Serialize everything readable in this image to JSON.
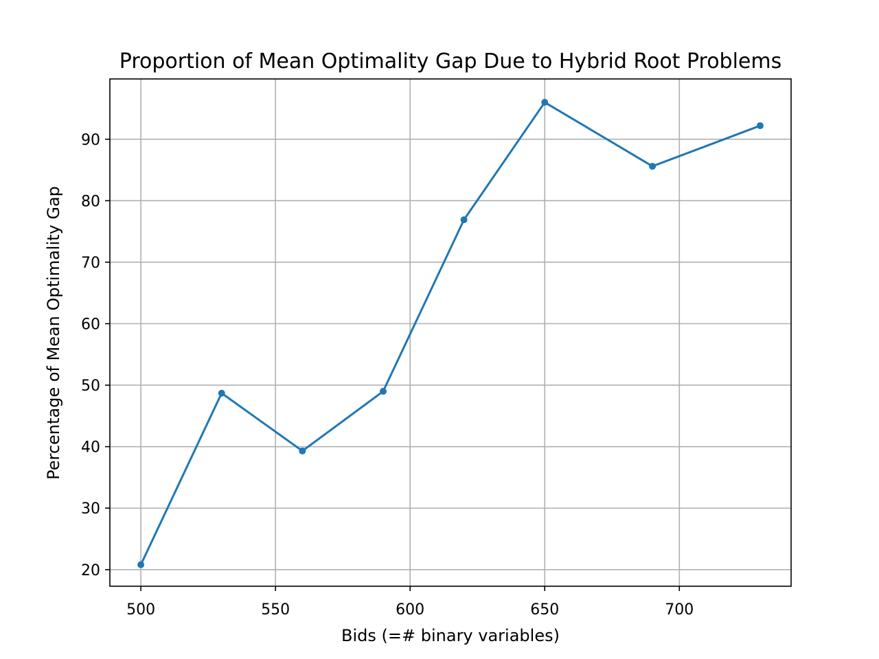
{
  "chart_data": {
    "type": "line",
    "title": "Proportion of Mean Optimality Gap Due to Hybrid Root Problems",
    "xlabel": "Bids (=# binary variables)",
    "ylabel": "Percentage of Mean Optimality Gap",
    "xlim": [
      488.5,
      741.5
    ],
    "ylim": [
      17.3,
      99.8
    ],
    "xticks": [
      500,
      550,
      600,
      650,
      700
    ],
    "yticks": [
      20,
      30,
      40,
      50,
      60,
      70,
      80,
      90
    ],
    "grid": true,
    "series": [
      {
        "color": "#1f77b4",
        "marker": "circle",
        "x": [
          500,
          530,
          560,
          590,
          620,
          650,
          690,
          730
        ],
        "y": [
          20.8,
          48.7,
          39.3,
          49.0,
          76.9,
          96.0,
          85.6,
          92.2
        ]
      }
    ]
  }
}
